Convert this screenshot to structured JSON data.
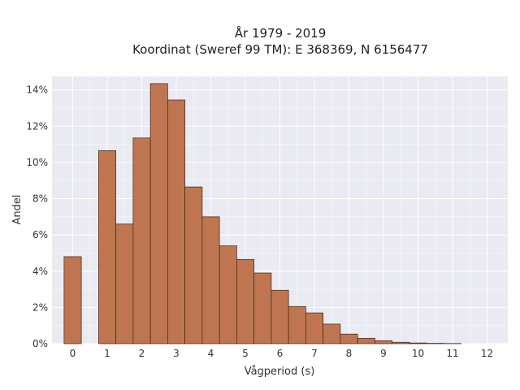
{
  "chart_data": {
    "type": "bar",
    "title_lines": [
      "År 1979 - 2019",
      "Koordinat (Sweref 99 TM): E 368369, N 6156477"
    ],
    "xlabel": "Vågperiod (s)",
    "ylabel": "Andel",
    "x_ticks": [
      "0",
      "1",
      "2",
      "3",
      "4",
      "5",
      "6",
      "7",
      "8",
      "9",
      "10",
      "11",
      "12"
    ],
    "y_ticks": [
      "0%",
      "2%",
      "4%",
      "6%",
      "8%",
      "10%",
      "12%",
      "14%"
    ],
    "xlim": [
      -0.6,
      12.6
    ],
    "ylim": [
      0,
      0.1475
    ],
    "bin_width": 0.5,
    "x": [
      0,
      1,
      1.5,
      2,
      2.5,
      3,
      3.5,
      4,
      4.5,
      5,
      5.5,
      6,
      6.5,
      7,
      7.5,
      8,
      8.5,
      9,
      9.5,
      10,
      10.5,
      11
    ],
    "values": [
      0.048,
      0.1065,
      0.066,
      0.1135,
      0.1435,
      0.1345,
      0.0865,
      0.07,
      0.054,
      0.0465,
      0.039,
      0.0295,
      0.0205,
      0.017,
      0.0108,
      0.0053,
      0.003,
      0.0016,
      0.0008,
      0.0004,
      0.0002,
      0.0001
    ],
    "bar_color": "#bf7650",
    "edge_color": "#3a2418",
    "background_color": "#eaeaf2",
    "grid": true,
    "legend": "none"
  }
}
